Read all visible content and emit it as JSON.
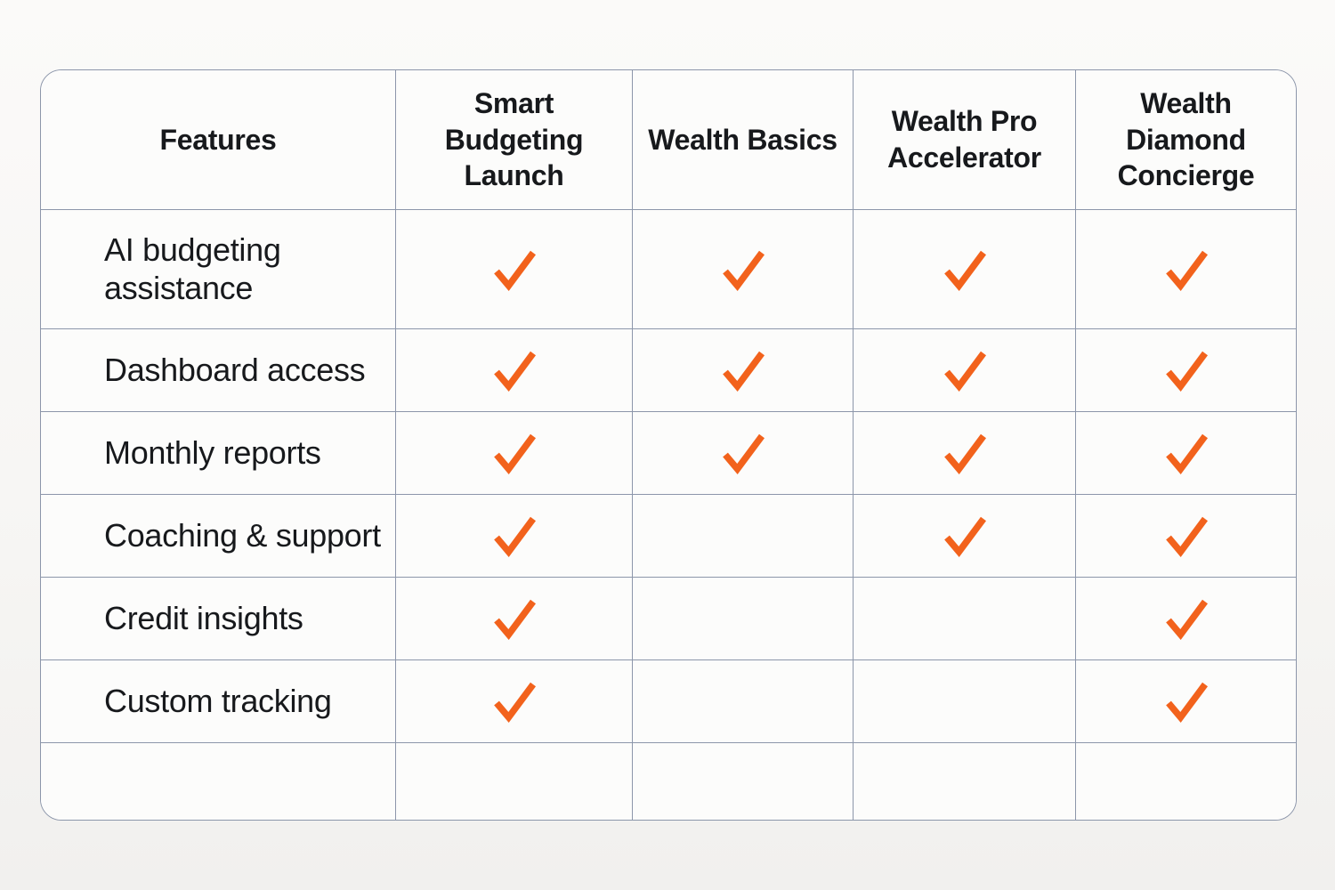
{
  "table": {
    "columns": [
      {
        "label": "Features"
      },
      {
        "label": "Smart Budgeting Launch"
      },
      {
        "label": "Wealth Basics"
      },
      {
        "label": "Wealth Pro Accelerator"
      },
      {
        "label": "Wealth Diamond Concierge"
      }
    ],
    "rows": [
      {
        "feature": "AI budgeting assistance",
        "checks": [
          true,
          true,
          true,
          true
        ]
      },
      {
        "feature": "Dashboard access",
        "checks": [
          true,
          true,
          true,
          true
        ]
      },
      {
        "feature": "Monthly reports",
        "checks": [
          true,
          true,
          true,
          true
        ]
      },
      {
        "feature": "Coaching & support",
        "checks": [
          true,
          false,
          true,
          true
        ]
      },
      {
        "feature": "Credit insights",
        "checks": [
          true,
          false,
          false,
          true
        ]
      },
      {
        "feature": "Custom tracking",
        "checks": [
          true,
          false,
          false,
          true
        ]
      },
      {
        "feature": "",
        "checks": [
          false,
          false,
          false,
          false
        ]
      }
    ],
    "check_symbol": "check-icon",
    "colors": {
      "check": "#F2621C",
      "border": "#8C96AA",
      "cell_background": "#FCFCFB",
      "text": "#17191C"
    }
  }
}
